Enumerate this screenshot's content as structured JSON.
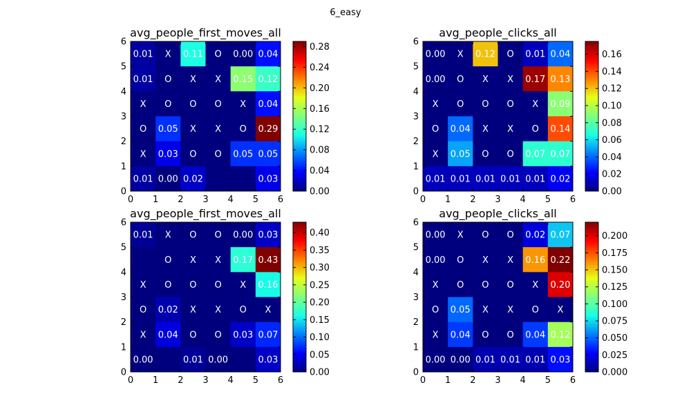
{
  "figure": {
    "suptitle": "6_easy"
  },
  "colorbar_colors": [
    "#00007f",
    "#0000ff",
    "#007fff",
    "#19ffe6",
    "#7fff7f",
    "#e6ff19",
    "#ff7f00",
    "#ff0000",
    "#7f0000"
  ],
  "chart_data": [
    {
      "type": "heatmap",
      "title": "avg_people_first_moves_all",
      "xlim": [
        0,
        6
      ],
      "ylim": [
        0,
        6
      ],
      "xticks": [
        "0",
        "1",
        "2",
        "3",
        "4",
        "5",
        "6"
      ],
      "yticks": [
        "0",
        "1",
        "2",
        "3",
        "4",
        "5",
        "6"
      ],
      "colorbar": {
        "min": 0,
        "max": 0.29,
        "ticks": [
          "0.00",
          "0.04",
          "0.08",
          "0.12",
          "0.16",
          "0.20",
          "0.24",
          "0.28"
        ],
        "tick_values": [
          0,
          0.04,
          0.08,
          0.12,
          0.16,
          0.2,
          0.24,
          0.28
        ]
      },
      "values": [
        [
          0.01,
          0,
          0.11,
          0,
          0.0,
          0.04
        ],
        [
          0.01,
          0,
          0,
          0,
          0.15,
          0.12
        ],
        [
          0,
          0,
          0,
          0,
          0,
          0.04
        ],
        [
          0,
          0.05,
          0,
          0,
          0,
          0.29
        ],
        [
          0,
          0.03,
          0,
          0,
          0.05,
          0.05
        ],
        [
          0.01,
          0.0,
          0.02,
          0,
          0,
          0.03
        ]
      ],
      "labels": [
        [
          "0.01",
          "X",
          "0.11",
          "O",
          "0.00",
          "0.04"
        ],
        [
          "0.01",
          "O",
          "X",
          "X",
          "0.15",
          "0.12"
        ],
        [
          "X",
          "O",
          "O",
          "O",
          "X",
          "0.04"
        ],
        [
          "O",
          "0.05",
          "X",
          "X",
          "O",
          "0.29"
        ],
        [
          "X",
          "0.03",
          "O",
          "O",
          "0.05",
          "0.05"
        ],
        [
          "0.01",
          "0.00",
          "0.02",
          "",
          "",
          "0.03"
        ]
      ]
    },
    {
      "type": "heatmap",
      "title": "avg_people_clicks_all",
      "xlim": [
        0,
        6
      ],
      "ylim": [
        0,
        6
      ],
      "xticks": [
        "0",
        "1",
        "2",
        "3",
        "4",
        "5",
        "6"
      ],
      "yticks": [
        "0",
        "1",
        "2",
        "3",
        "4",
        "5",
        "6"
      ],
      "colorbar": {
        "min": 0,
        "max": 0.175,
        "ticks": [
          "0.00",
          "0.02",
          "0.04",
          "0.06",
          "0.08",
          "0.10",
          "0.12",
          "0.14",
          "0.16"
        ],
        "tick_values": [
          0,
          0.02,
          0.04,
          0.06,
          0.08,
          0.1,
          0.12,
          0.14,
          0.16
        ]
      },
      "values": [
        [
          0.0,
          0,
          0.12,
          0,
          0.01,
          0.04
        ],
        [
          0.0,
          0,
          0,
          0,
          0.17,
          0.13
        ],
        [
          0,
          0,
          0,
          0,
          0,
          0.09
        ],
        [
          0,
          0.04,
          0,
          0,
          0,
          0.14
        ],
        [
          0,
          0.05,
          0,
          0,
          0.07,
          0.07
        ],
        [
          0.01,
          0.01,
          0.01,
          0.01,
          0.01,
          0.02
        ]
      ],
      "labels": [
        [
          "0.00",
          "X",
          "0.12",
          "O",
          "0.01",
          "0.04"
        ],
        [
          "0.00",
          "O",
          "X",
          "X",
          "0.17",
          "0.13"
        ],
        [
          "X",
          "O",
          "O",
          "O",
          "X",
          "0.09"
        ],
        [
          "O",
          "0.04",
          "X",
          "X",
          "O",
          "0.14"
        ],
        [
          "X",
          "0.05",
          "O",
          "O",
          "0.07",
          "0.07"
        ],
        [
          "0.01",
          "0.01",
          "0.01",
          "0.01",
          "0.01",
          "0.02"
        ]
      ]
    },
    {
      "type": "heatmap",
      "title": "avg_people_first_moves_all",
      "xlim": [
        0,
        6
      ],
      "ylim": [
        0,
        6
      ],
      "xticks": [
        "0",
        "1",
        "2",
        "3",
        "4",
        "5",
        "6"
      ],
      "yticks": [
        "0",
        "1",
        "2",
        "3",
        "4",
        "5",
        "6"
      ],
      "colorbar": {
        "min": 0,
        "max": 0.43,
        "ticks": [
          "0.00",
          "0.05",
          "0.10",
          "0.15",
          "0.20",
          "0.25",
          "0.30",
          "0.35",
          "0.40"
        ],
        "tick_values": [
          0,
          0.05,
          0.1,
          0.15,
          0.2,
          0.25,
          0.3,
          0.35,
          0.4
        ]
      },
      "values": [
        [
          0.01,
          0,
          0,
          0,
          0.0,
          0.03
        ],
        [
          0,
          0,
          0,
          0,
          0.17,
          0.43
        ],
        [
          0,
          0,
          0,
          0,
          0,
          0.16
        ],
        [
          0,
          0.02,
          0,
          0,
          0,
          0
        ],
        [
          0,
          0.04,
          0,
          0,
          0.03,
          0.07
        ],
        [
          0.0,
          0,
          0.01,
          0.0,
          0,
          0.03
        ]
      ],
      "labels": [
        [
          "0.01",
          "X",
          "O",
          "O",
          "0.00",
          "0.03"
        ],
        [
          "",
          "O",
          "X",
          "X",
          "0.17",
          "0.43"
        ],
        [
          "X",
          "O",
          "O",
          "O",
          "X",
          "0.16"
        ],
        [
          "O",
          "0.02",
          "X",
          "X",
          "O",
          "X"
        ],
        [
          "X",
          "0.04",
          "O",
          "O",
          "0.03",
          "0.07"
        ],
        [
          "0.00",
          "",
          "0.01",
          "0.00",
          "",
          "0.03"
        ]
      ]
    },
    {
      "type": "heatmap",
      "title": "avg_people_clicks_all",
      "xlim": [
        0,
        6
      ],
      "ylim": [
        0,
        6
      ],
      "xticks": [
        "0",
        "1",
        "2",
        "3",
        "4",
        "5",
        "6"
      ],
      "yticks": [
        "0",
        "1",
        "2",
        "3",
        "4",
        "5",
        "6"
      ],
      "colorbar": {
        "min": 0,
        "max": 0.22,
        "ticks": [
          "0.000",
          "0.025",
          "0.050",
          "0.075",
          "0.100",
          "0.125",
          "0.150",
          "0.175",
          "0.200"
        ],
        "tick_values": [
          0,
          0.025,
          0.05,
          0.075,
          0.1,
          0.125,
          0.15,
          0.175,
          0.2
        ]
      },
      "values": [
        [
          0.0,
          0,
          0,
          0,
          0.02,
          0.07
        ],
        [
          0.0,
          0,
          0,
          0,
          0.16,
          0.22
        ],
        [
          0,
          0,
          0,
          0,
          0,
          0.2
        ],
        [
          0,
          0.05,
          0,
          0,
          0,
          0
        ],
        [
          0,
          0.04,
          0,
          0,
          0.04,
          0.12
        ],
        [
          0.0,
          0.0,
          0.01,
          0.01,
          0.01,
          0.03
        ]
      ],
      "labels": [
        [
          "0.00",
          "X",
          "O",
          "O",
          "0.02",
          "0.07"
        ],
        [
          "0.00",
          "O",
          "X",
          "X",
          "0.16",
          "0.22"
        ],
        [
          "X",
          "O",
          "O",
          "O",
          "X",
          "0.20"
        ],
        [
          "O",
          "0.05",
          "X",
          "X",
          "O",
          "X"
        ],
        [
          "X",
          "0.04",
          "O",
          "O",
          "0.04",
          "0.12"
        ],
        [
          "0.00",
          "0.00",
          "0.01",
          "0.01",
          "0.01",
          "0.03"
        ]
      ]
    }
  ]
}
